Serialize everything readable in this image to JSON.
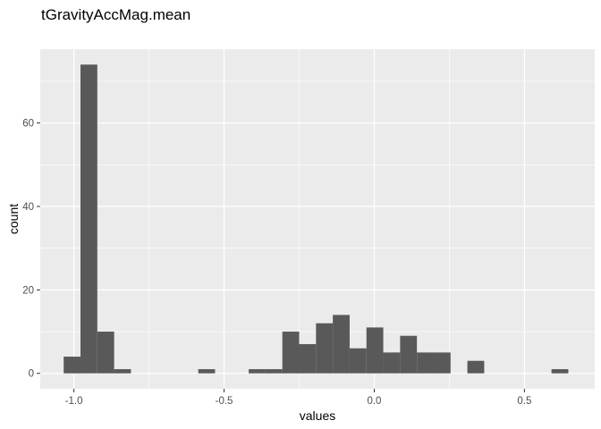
{
  "chart_data": {
    "type": "bar",
    "title": "tGravityAccMag.mean",
    "xlabel": "values",
    "ylabel": "count",
    "xlim": [
      -1.112,
      0.734
    ],
    "ylim": [
      -3.7,
      77.7
    ],
    "bin_width": 0.056,
    "x_ticks": [
      {
        "value": -1.0,
        "label": "-1.0"
      },
      {
        "value": -0.5,
        "label": "-0.5"
      },
      {
        "value": 0.0,
        "label": "0.0"
      },
      {
        "value": 0.5,
        "label": "0.5"
      }
    ],
    "y_ticks": [
      {
        "value": 0,
        "label": "0"
      },
      {
        "value": 20,
        "label": "20"
      },
      {
        "value": 40,
        "label": "40"
      },
      {
        "value": 60,
        "label": "60"
      }
    ],
    "grid": true,
    "legend": "none",
    "bar_color": "#595959",
    "panel_color": "#ebebeb",
    "bins": [
      {
        "x0": -1.034,
        "x1": -0.978,
        "count": 4
      },
      {
        "x0": -0.978,
        "x1": -0.922,
        "count": 74
      },
      {
        "x0": -0.922,
        "x1": -0.866,
        "count": 10
      },
      {
        "x0": -0.866,
        "x1": -0.81,
        "count": 1
      },
      {
        "x0": -0.81,
        "x1": -0.754,
        "count": 0
      },
      {
        "x0": -0.754,
        "x1": -0.698,
        "count": 0
      },
      {
        "x0": -0.698,
        "x1": -0.642,
        "count": 0
      },
      {
        "x0": -0.642,
        "x1": -0.586,
        "count": 0
      },
      {
        "x0": -0.586,
        "x1": -0.53,
        "count": 1
      },
      {
        "x0": -0.53,
        "x1": -0.474,
        "count": 0
      },
      {
        "x0": -0.474,
        "x1": -0.418,
        "count": 0
      },
      {
        "x0": -0.418,
        "x1": -0.362,
        "count": 1
      },
      {
        "x0": -0.362,
        "x1": -0.306,
        "count": 1
      },
      {
        "x0": -0.306,
        "x1": -0.25,
        "count": 10
      },
      {
        "x0": -0.25,
        "x1": -0.194,
        "count": 7
      },
      {
        "x0": -0.194,
        "x1": -0.138,
        "count": 12
      },
      {
        "x0": -0.138,
        "x1": -0.082,
        "count": 14
      },
      {
        "x0": -0.082,
        "x1": -0.026,
        "count": 6
      },
      {
        "x0": -0.026,
        "x1": 0.03,
        "count": 11
      },
      {
        "x0": 0.03,
        "x1": 0.086,
        "count": 5
      },
      {
        "x0": 0.086,
        "x1": 0.142,
        "count": 9
      },
      {
        "x0": 0.142,
        "x1": 0.198,
        "count": 5
      },
      {
        "x0": 0.198,
        "x1": 0.254,
        "count": 5
      },
      {
        "x0": 0.254,
        "x1": 0.31,
        "count": 0
      },
      {
        "x0": 0.31,
        "x1": 0.366,
        "count": 3
      },
      {
        "x0": 0.366,
        "x1": 0.422,
        "count": 0
      },
      {
        "x0": 0.422,
        "x1": 0.478,
        "count": 0
      },
      {
        "x0": 0.478,
        "x1": 0.534,
        "count": 0
      },
      {
        "x0": 0.534,
        "x1": 0.59,
        "count": 0
      },
      {
        "x0": 0.59,
        "x1": 0.646,
        "count": 1
      }
    ]
  }
}
